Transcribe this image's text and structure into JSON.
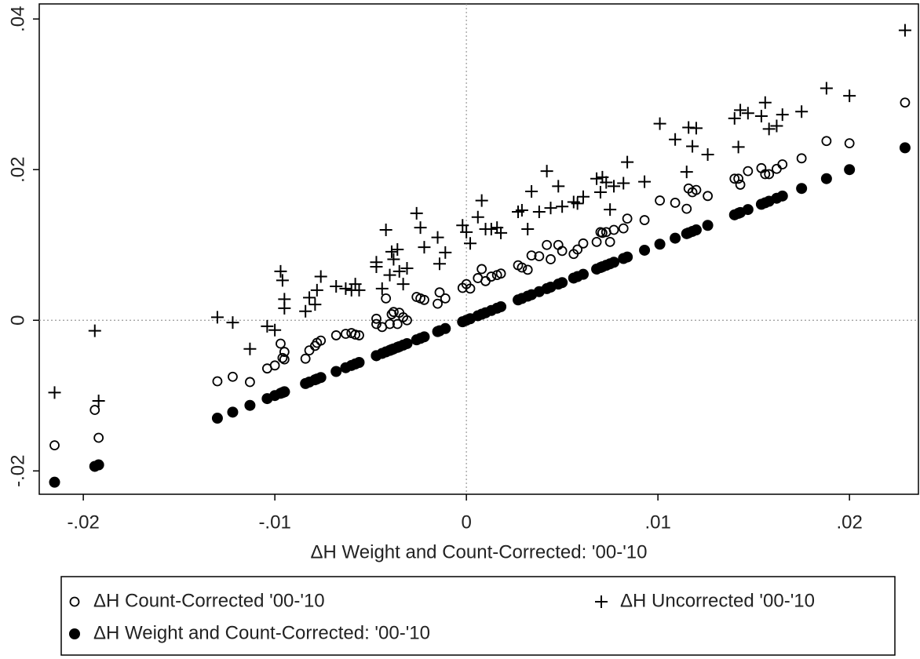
{
  "chart_data": {
    "type": "scatter",
    "x_label": "ΔH Weight and Count-Corrected: '00-'10",
    "x": [
      -0.0215,
      -0.0194,
      -0.0192,
      -0.013,
      -0.0122,
      -0.0113,
      -0.0104,
      -0.01,
      -0.0097,
      -0.0096,
      -0.0095,
      -0.0095,
      -0.0084,
      -0.0082,
      -0.0079,
      -0.0078,
      -0.0076,
      -0.0068,
      -0.0063,
      -0.006,
      -0.0058,
      -0.0056,
      -0.0047,
      -0.0047,
      -0.0044,
      -0.0042,
      -0.004,
      -0.0039,
      -0.0038,
      -0.0036,
      -0.0035,
      -0.0033,
      -0.0031,
      -0.0026,
      -0.0024,
      -0.0022,
      -0.0015,
      -0.0014,
      -0.0011,
      -0.0002,
      0.0,
      0.0002,
      0.0006,
      0.0008,
      0.001,
      0.0013,
      0.0016,
      0.0018,
      0.0027,
      0.0029,
      0.0032,
      0.0034,
      0.0038,
      0.0042,
      0.0044,
      0.0048,
      0.005,
      0.0056,
      0.0058,
      0.0061,
      0.0068,
      0.007,
      0.0071,
      0.0073,
      0.0075,
      0.0077,
      0.0082,
      0.0084,
      0.0093,
      0.0101,
      0.0109,
      0.0115,
      0.0116,
      0.0118,
      0.012,
      0.0126,
      0.014,
      0.0142,
      0.0143,
      0.0147,
      0.0154,
      0.0156,
      0.0158,
      0.0162,
      0.0165,
      0.0175,
      0.0188,
      0.02,
      0.0229
    ],
    "series": [
      {
        "name": "ΔH Count-Corrected '00-'10",
        "color": "#000000",
        "marker": "circle-open",
        "values": [
          -0.0166,
          -0.0119,
          -0.0156,
          -0.0081,
          -0.0075,
          -0.0082,
          -0.0064,
          -0.006,
          -0.0031,
          -0.005,
          -0.0042,
          -0.0052,
          -0.0051,
          -0.004,
          -0.0034,
          -0.003,
          -0.0027,
          -0.002,
          -0.0018,
          -0.0017,
          -0.0019,
          -0.002,
          0.0002,
          -0.0005,
          -0.0009,
          0.0029,
          -0.0005,
          0.0008,
          0.0011,
          -0.0005,
          0.001,
          0.0004,
          0.0,
          0.0031,
          0.0029,
          0.0027,
          0.0022,
          0.0037,
          0.0029,
          0.0043,
          0.0048,
          0.0042,
          0.0056,
          0.0068,
          0.0052,
          0.0058,
          0.006,
          0.0062,
          0.0073,
          0.007,
          0.0067,
          0.0086,
          0.0085,
          0.01,
          0.0081,
          0.01,
          0.0092,
          0.0088,
          0.0094,
          0.0102,
          0.0104,
          0.0117,
          0.0116,
          0.0117,
          0.0104,
          0.012,
          0.0122,
          0.0135,
          0.0133,
          0.0159,
          0.0156,
          0.0148,
          0.0175,
          0.017,
          0.0173,
          0.0165,
          0.0188,
          0.0188,
          0.018,
          0.0198,
          0.0202,
          0.0194,
          0.0194,
          0.0201,
          0.0207,
          0.0215,
          0.0238,
          0.0235,
          0.0289
        ]
      },
      {
        "name": "ΔH Uncorrected '00-'10",
        "color": "#000000",
        "marker": "plus",
        "values": [
          -0.0096,
          -0.0014,
          -0.0107,
          0.0004,
          -0.0003,
          -0.0038,
          -0.0008,
          -0.0013,
          0.0065,
          0.0053,
          0.0016,
          0.0028,
          0.0012,
          0.003,
          0.0021,
          0.004,
          0.0058,
          0.0045,
          0.0042,
          0.004,
          0.0048,
          0.004,
          0.0071,
          0.0077,
          0.0042,
          0.012,
          0.006,
          0.0091,
          0.0081,
          0.0094,
          0.0065,
          0.0048,
          0.0069,
          0.0142,
          0.0123,
          0.0097,
          0.011,
          0.0075,
          0.009,
          0.0126,
          0.0117,
          0.0102,
          0.0137,
          0.0159,
          0.0121,
          0.0121,
          0.0123,
          0.0116,
          0.0144,
          0.0146,
          0.0121,
          0.0171,
          0.0144,
          0.0198,
          0.0149,
          0.0178,
          0.0151,
          0.0157,
          0.0155,
          0.0164,
          0.0188,
          0.017,
          0.019,
          0.0183,
          0.0147,
          0.0178,
          0.0182,
          0.021,
          0.0184,
          0.0261,
          0.024,
          0.0197,
          0.0256,
          0.0231,
          0.0255,
          0.022,
          0.0268,
          0.023,
          0.0279,
          0.0275,
          0.0271,
          0.0289,
          0.0254,
          0.0258,
          0.0273,
          0.0277,
          0.0308,
          0.0298,
          0.0385
        ]
      },
      {
        "name": "ΔH Weight and Count-Corrected: '00-'10",
        "color": "#000000",
        "marker": "circle-filled",
        "values": [
          -0.0215,
          -0.0194,
          -0.0192,
          -0.013,
          -0.0122,
          -0.0113,
          -0.0104,
          -0.01,
          -0.0097,
          -0.0096,
          -0.0095,
          -0.0095,
          -0.0084,
          -0.0082,
          -0.0079,
          -0.0078,
          -0.0076,
          -0.0068,
          -0.0063,
          -0.006,
          -0.0058,
          -0.0056,
          -0.0047,
          -0.0047,
          -0.0044,
          -0.0042,
          -0.004,
          -0.0039,
          -0.0038,
          -0.0036,
          -0.0035,
          -0.0033,
          -0.0031,
          -0.0026,
          -0.0024,
          -0.0022,
          -0.0015,
          -0.0014,
          -0.0011,
          -0.0002,
          0.0,
          0.0002,
          0.0006,
          0.0008,
          0.001,
          0.0013,
          0.0016,
          0.0018,
          0.0027,
          0.0029,
          0.0032,
          0.0034,
          0.0038,
          0.0042,
          0.0044,
          0.0048,
          0.005,
          0.0056,
          0.0058,
          0.0061,
          0.0068,
          0.007,
          0.0071,
          0.0073,
          0.0075,
          0.0077,
          0.0082,
          0.0084,
          0.0093,
          0.0101,
          0.0109,
          0.0115,
          0.0116,
          0.0118,
          0.012,
          0.0126,
          0.014,
          0.0142,
          0.0143,
          0.0147,
          0.0154,
          0.0156,
          0.0158,
          0.0162,
          0.0165,
          0.0175,
          0.0188,
          0.02,
          0.0229
        ]
      }
    ],
    "xlim": [
      -0.0223,
      0.0236
    ],
    "ylim": [
      -0.0231,
      0.042
    ],
    "xticks": [
      {
        "value": -0.02,
        "label": "-.02"
      },
      {
        "value": -0.01,
        "label": "-.01"
      },
      0,
      {
        "value": 0.01,
        "label": ".01"
      },
      {
        "value": 0.02,
        "label": ".02"
      }
    ],
    "yticks": [
      {
        "value": -0.02,
        "label": "-.02"
      },
      0,
      {
        "value": 0.02,
        "label": ".02"
      },
      {
        "value": 0.04,
        "label": ".04"
      }
    ],
    "reference_lines": true,
    "legend": "bottom"
  }
}
